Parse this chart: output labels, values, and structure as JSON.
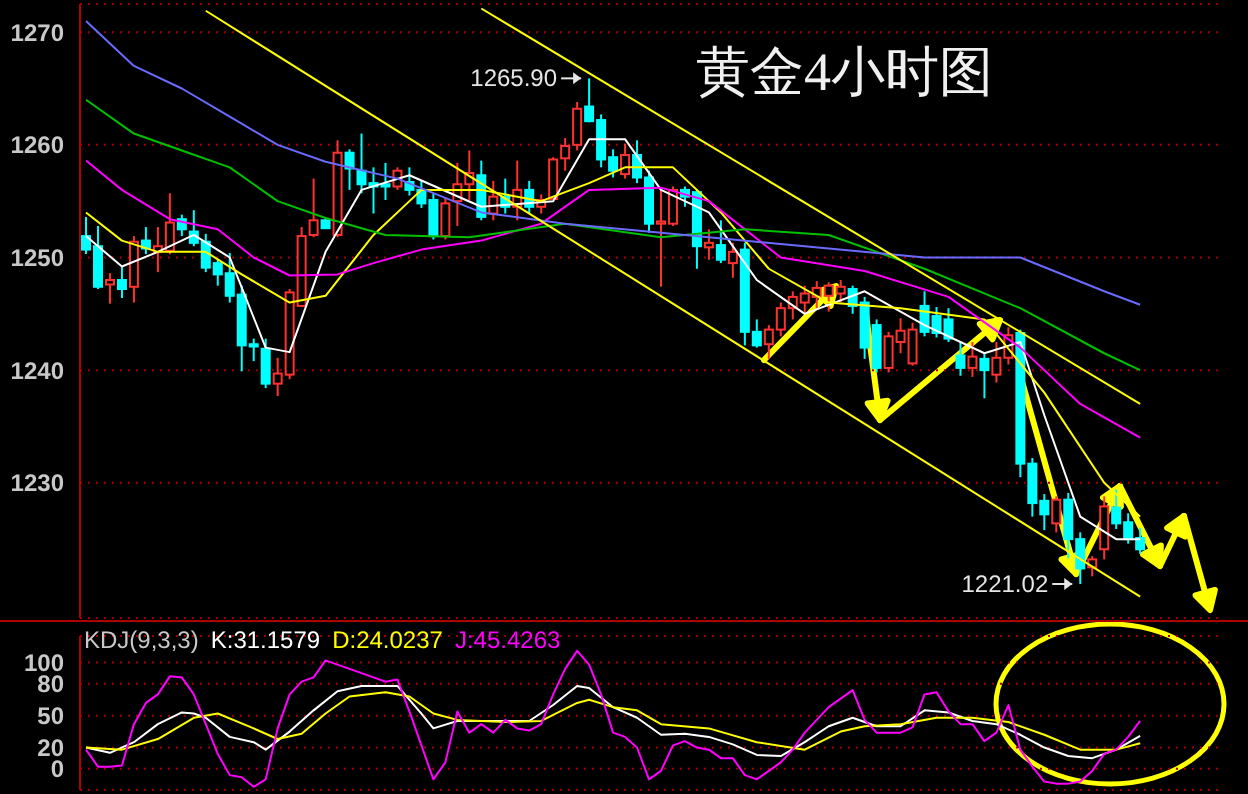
{
  "chart_data": [
    {
      "type": "candlestick",
      "title": "黄金4小时图",
      "categories": [
        null,
        null,
        null,
        null,
        null,
        null,
        null,
        null,
        null,
        null,
        null,
        null,
        null,
        null,
        null,
        null,
        null,
        null,
        null,
        null,
        null,
        null,
        null,
        null,
        null,
        null,
        null,
        null,
        null,
        null,
        null,
        null,
        null,
        null,
        null,
        null,
        null,
        null,
        null,
        null,
        null,
        null,
        null,
        null,
        null,
        null,
        null,
        null,
        null,
        null,
        null,
        null,
        null,
        null,
        null,
        null,
        null,
        null,
        null,
        null,
        null,
        null,
        null,
        null,
        null,
        null,
        null,
        null,
        null,
        null,
        null,
        null,
        null,
        null,
        null,
        null,
        null,
        null,
        null,
        null,
        null,
        null,
        null,
        null,
        null,
        null,
        null,
        null,
        null
      ],
      "ohlc": [
        [
          1251.9,
          1253.6,
          1250.3,
          1250.7
        ],
        [
          1251.0,
          1252.8,
          1247.2,
          1247.4
        ],
        [
          1247.6,
          1248.6,
          1245.9,
          1248.0
        ],
        [
          1248.0,
          1249.2,
          1246.4,
          1247.2
        ],
        [
          1247.4,
          1251.9,
          1246.0,
          1251.4
        ],
        [
          1251.5,
          1252.7,
          1250.3,
          1250.8
        ],
        [
          1250.5,
          1252.7,
          1248.7,
          1251.0
        ],
        [
          1250.6,
          1255.7,
          1250.3,
          1253.1
        ],
        [
          1253.4,
          1253.8,
          1251.9,
          1252.5
        ],
        [
          1252.3,
          1254.2,
          1251.0,
          1251.3
        ],
        [
          1251.4,
          1252.1,
          1248.7,
          1249.1
        ],
        [
          1249.5,
          1249.8,
          1247.5,
          1248.5
        ],
        [
          1248.6,
          1250.4,
          1246.0,
          1246.6
        ],
        [
          1246.7,
          1247.5,
          1239.9,
          1242.2
        ],
        [
          1242.3,
          1242.8,
          1240.8,
          1242.1
        ],
        [
          1241.9,
          1242.8,
          1238.4,
          1238.8
        ],
        [
          1238.8,
          1241.1,
          1237.7,
          1239.7
        ],
        [
          1239.6,
          1247.2,
          1239.2,
          1246.9
        ],
        [
          1245.7,
          1252.7,
          1245.6,
          1251.9
        ],
        [
          1252.0,
          1257.0,
          1251.8,
          1253.3
        ],
        [
          1253.3,
          1253.6,
          1252.6,
          1252.6
        ],
        [
          1252.0,
          1260.4,
          1251.8,
          1259.3
        ],
        [
          1259.3,
          1259.6,
          1256.0,
          1257.9
        ],
        [
          1257.7,
          1261.0,
          1255.7,
          1256.5
        ],
        [
          1256.6,
          1258.0,
          1253.9,
          1256.3
        ],
        [
          1256.5,
          1258.4,
          1255.1,
          1256.3
        ],
        [
          1256.3,
          1258.0,
          1256.0,
          1257.7
        ],
        [
          1256.7,
          1258.0,
          1255.5,
          1256.0
        ],
        [
          1256.0,
          1256.8,
          1254.4,
          1254.8
        ],
        [
          1255.1,
          1255.7,
          1251.6,
          1251.9
        ],
        [
          1251.9,
          1255.3,
          1251.6,
          1254.8
        ],
        [
          1255.0,
          1258.4,
          1252.8,
          1256.5
        ],
        [
          1256.5,
          1259.5,
          1255.1,
          1257.5
        ],
        [
          1257.3,
          1258.6,
          1253.3,
          1253.6
        ],
        [
          1253.9,
          1256.8,
          1253.3,
          1255.4
        ],
        [
          1255.4,
          1257.0,
          1253.9,
          1254.5
        ],
        [
          1254.5,
          1258.6,
          1253.3,
          1256.0
        ],
        [
          1256.0,
          1256.8,
          1253.9,
          1254.5
        ],
        [
          1254.5,
          1255.6,
          1253.9,
          1255.1
        ],
        [
          1255.2,
          1258.9,
          1255.1,
          1258.7
        ],
        [
          1258.8,
          1260.6,
          1257.7,
          1259.9
        ],
        [
          1260.0,
          1263.8,
          1259.5,
          1263.2
        ],
        [
          1263.4,
          1265.9,
          1262.0,
          1262.1
        ],
        [
          1262.2,
          1262.7,
          1258.0,
          1258.7
        ],
        [
          1258.9,
          1259.6,
          1257.1,
          1257.7
        ],
        [
          1257.4,
          1260.1,
          1257.0,
          1259.1
        ],
        [
          1259.1,
          1260.4,
          1256.6,
          1257.1
        ],
        [
          1257.1,
          1257.7,
          1252.2,
          1253.0
        ],
        [
          1253.0,
          1256.0,
          1247.4,
          1253.2
        ],
        [
          1253.0,
          1256.3,
          1252.8,
          1256.0
        ],
        [
          1256.0,
          1256.3,
          1254.5,
          1255.4
        ],
        [
          1255.8,
          1256.0,
          1249.0,
          1251.0
        ],
        [
          1250.9,
          1252.5,
          1249.8,
          1251.3
        ],
        [
          1251.1,
          1253.3,
          1249.5,
          1249.8
        ],
        [
          1249.5,
          1251.3,
          1248.2,
          1250.5
        ],
        [
          1250.7,
          1251.3,
          1242.2,
          1243.4
        ],
        [
          1243.4,
          1244.5,
          1242.0,
          1242.2
        ],
        [
          1242.3,
          1244.0,
          1241.0,
          1243.6
        ],
        [
          1243.6,
          1246.0,
          1243.0,
          1245.5
        ],
        [
          1245.5,
          1247.0,
          1244.5,
          1246.5
        ],
        [
          1246.0,
          1247.5,
          1245.0,
          1246.8
        ],
        [
          1246.5,
          1247.9,
          1245.5,
          1247.3
        ],
        [
          1246.6,
          1247.8,
          1245.2,
          1247.5
        ],
        [
          1246.8,
          1248.0,
          1246.0,
          1247.4
        ],
        [
          1247.2,
          1247.5,
          1245.0,
          1245.7
        ],
        [
          1246.0,
          1246.5,
          1241.0,
          1242.0
        ],
        [
          1244.0,
          1244.5,
          1239.8,
          1240.2
        ],
        [
          1240.2,
          1243.4,
          1239.8,
          1243.0
        ],
        [
          1242.5,
          1244.6,
          1241.5,
          1243.5
        ],
        [
          1240.6,
          1244.2,
          1240.4,
          1243.6
        ],
        [
          1245.7,
          1247.0,
          1243.0,
          1243.4
        ],
        [
          1244.8,
          1245.6,
          1242.9,
          1243.3
        ],
        [
          1244.5,
          1245.5,
          1242.5,
          1242.8
        ],
        [
          1241.3,
          1242.5,
          1239.5,
          1240.2
        ],
        [
          1240.2,
          1242.5,
          1239.4,
          1241.2
        ],
        [
          1241.0,
          1241.5,
          1237.5,
          1240.0
        ],
        [
          1239.6,
          1242.5,
          1238.9,
          1241.1
        ],
        [
          1241.1,
          1243.8,
          1240.5,
          1243.1
        ],
        [
          1243.3,
          1243.6,
          1230.5,
          1231.7
        ],
        [
          1231.7,
          1232.2,
          1227.0,
          1228.2
        ],
        [
          1228.4,
          1229.0,
          1225.8,
          1227.2
        ],
        [
          1226.4,
          1228.8,
          1225.6,
          1228.5
        ],
        [
          1228.5,
          1229.1,
          1223.3,
          1225.0
        ],
        [
          1225.0,
          1225.6,
          1221.02,
          1222.4
        ],
        [
          1222.5,
          1223.5,
          1221.7,
          1223.2
        ],
        [
          1224.1,
          1228.8,
          1223.2,
          1227.9
        ],
        [
          1227.8,
          1229.4,
          1225.9,
          1226.4
        ],
        [
          1226.5,
          1227.3,
          1224.6,
          1225.0
        ],
        [
          1225.1,
          1226.0,
          1223.7,
          1224.1
        ]
      ],
      "series": [
        {
          "type": "line",
          "color": "#ffffff",
          "values": [
            1251.9,
            null,
            null,
            1249.2,
            null,
            null,
            1250.5,
            null,
            null,
            1252,
            null,
            null,
            1250,
            null,
            null,
            1242,
            null,
            1241.6,
            null,
            null,
            1250.5,
            null,
            null,
            1256,
            null,
            null,
            null,
            1257.3,
            null,
            null,
            null,
            null,
            null,
            1254.5,
            null,
            null,
            null,
            null,
            null,
            1255,
            null,
            null,
            1260.5,
            null,
            null,
            1260.5,
            null,
            null,
            1256,
            null,
            null,
            null,
            1254,
            null,
            null,
            null,
            1248,
            null,
            null,
            null,
            1245,
            null,
            null,
            null,
            null,
            1247,
            null,
            null,
            null,
            null,
            1244,
            null,
            null,
            null,
            null,
            1241.5,
            null,
            null,
            1242.5,
            null,
            1236,
            null,
            null,
            1227,
            null,
            null,
            1225,
            null,
            1225
          ]
        },
        {
          "type": "line",
          "color": "#ffff00",
          "values": [
            1254,
            null,
            null,
            1251.5,
            null,
            null,
            1250.5,
            null,
            null,
            null,
            1250.5,
            null,
            null,
            1248.5,
            null,
            null,
            null,
            1246,
            null,
            null,
            1246.6,
            null,
            null,
            null,
            1252,
            null,
            null,
            null,
            1256,
            null,
            null,
            null,
            null,
            1256,
            null,
            null,
            null,
            null,
            1255,
            null,
            null,
            null,
            1256.6,
            null,
            null,
            1258,
            null,
            null,
            null,
            1258,
            null,
            null,
            null,
            1254,
            null,
            null,
            null,
            1249,
            null,
            null,
            null,
            null,
            1246,
            null,
            null,
            null,
            null,
            null,
            1245.5,
            null,
            null,
            null,
            null,
            null,
            null,
            1244.5,
            null,
            null,
            null,
            null,
            1238,
            null,
            null,
            null,
            null,
            1230,
            null,
            null,
            1227
          ]
        },
        {
          "type": "line",
          "color": "#ff00ff",
          "values": [
            1258.6,
            null,
            null,
            1256,
            null,
            null,
            null,
            1253.4,
            null,
            null,
            null,
            1252.5,
            null,
            null,
            1250,
            null,
            null,
            1248.4,
            null,
            null,
            null,
            1248.5,
            null,
            null,
            1249.5,
            null,
            null,
            null,
            1250.7,
            null,
            null,
            null,
            null,
            1251.5,
            null,
            null,
            null,
            null,
            1253,
            null,
            null,
            null,
            1256,
            null,
            null,
            null,
            null,
            null,
            1256.2,
            null,
            null,
            null,
            1255,
            null,
            null,
            null,
            null,
            null,
            1250,
            null,
            null,
            null,
            null,
            null,
            null,
            1248.8,
            null,
            null,
            null,
            null,
            null,
            null,
            1246.5,
            null,
            null,
            null,
            null,
            null,
            1242,
            null,
            null,
            null,
            null,
            1237,
            null,
            null,
            null,
            null,
            1234
          ]
        },
        {
          "type": "line",
          "color": "#00c000",
          "values": [
            1264,
            null,
            null,
            null,
            1261,
            null,
            null,
            null,
            1259.5,
            null,
            null,
            null,
            1258,
            null,
            null,
            null,
            1255,
            null,
            null,
            null,
            1253.5,
            null,
            null,
            null,
            null,
            1252,
            null,
            null,
            null,
            null,
            null,
            null,
            1251.8,
            null,
            null,
            null,
            null,
            null,
            null,
            null,
            1253,
            null,
            null,
            null,
            null,
            null,
            null,
            null,
            1251.8,
            null,
            null,
            null,
            null,
            null,
            null,
            1252.5,
            null,
            null,
            null,
            null,
            null,
            null,
            1252,
            null,
            null,
            null,
            null,
            null,
            null,
            null,
            1249,
            null,
            null,
            null,
            null,
            null,
            null,
            null,
            1245.5,
            null,
            null,
            null,
            null,
            null,
            null,
            1241.5,
            null,
            null,
            1240
          ]
        },
        {
          "type": "line",
          "color": "#6a6aff",
          "values": [
            1271,
            null,
            null,
            null,
            1267,
            null,
            null,
            null,
            1265,
            null,
            null,
            null,
            1262.5,
            null,
            null,
            null,
            1260,
            null,
            null,
            null,
            1258.5,
            null,
            null,
            null,
            null,
            null,
            1257,
            null,
            null,
            null,
            null,
            null,
            null,
            1254,
            null,
            null,
            null,
            null,
            null,
            null,
            1253,
            null,
            null,
            null,
            null,
            null,
            null,
            null,
            null,
            null,
            1252,
            null,
            null,
            null,
            null,
            null,
            null,
            null,
            null,
            null,
            1251,
            null,
            null,
            null,
            null,
            null,
            null,
            null,
            null,
            null,
            1250,
            null,
            null,
            null,
            null,
            null,
            null,
            null,
            1250,
            null,
            null,
            null,
            null,
            null,
            null,
            1247,
            null,
            null,
            1245.8
          ]
        },
        {
          "type": "line",
          "color": "#ffff00",
          "values": [
            null,
            null,
            null,
            null,
            null,
            null,
            null,
            null,
            null,
            null,
            1271.9,
            null,
            null,
            null,
            null,
            null,
            null,
            null,
            null,
            null,
            null,
            null,
            null,
            null,
            null,
            null,
            null,
            null,
            null,
            null,
            null,
            null,
            null,
            null,
            null,
            null,
            null,
            null,
            null,
            null,
            null,
            null,
            null,
            null,
            null,
            null,
            null,
            null,
            null,
            null,
            null,
            null,
            null,
            null,
            null,
            null,
            null,
            null,
            null,
            null,
            null,
            null,
            null,
            null,
            null,
            null,
            null,
            null,
            null,
            null,
            null,
            null,
            null,
            null,
            null,
            null,
            null,
            null,
            null,
            null,
            null,
            null,
            null,
            null,
            null,
            null,
            null,
            null,
            1219.9
          ]
        },
        {
          "type": "line",
          "color": "#ffff00",
          "values": [
            null,
            null,
            null,
            null,
            null,
            null,
            null,
            null,
            null,
            null,
            null,
            null,
            null,
            null,
            null,
            null,
            null,
            null,
            null,
            null,
            null,
            null,
            null,
            null,
            null,
            null,
            null,
            null,
            null,
            null,
            null,
            null,
            null,
            1272.1,
            null,
            null,
            null,
            null,
            null,
            null,
            null,
            null,
            null,
            null,
            null,
            null,
            null,
            null,
            null,
            null,
            null,
            null,
            null,
            null,
            null,
            null,
            null,
            null,
            null,
            null,
            null,
            null,
            null,
            null,
            null,
            null,
            null,
            null,
            null,
            null,
            null,
            null,
            null,
            null,
            null,
            null,
            null,
            null,
            null,
            null,
            null,
            null,
            null,
            null,
            null,
            null,
            null,
            null,
            1237.0
          ]
        }
      ],
      "ylim": [
        1218,
        1272.5
      ],
      "yticks": [
        1230,
        1240,
        1250,
        1260,
        1270
      ],
      "grid": "y",
      "tick_labels": "y",
      "annotations": [
        "1265.90",
        "1221.02"
      ]
    },
    {
      "type": "line",
      "title": "KDJ(9,3,3)",
      "categories": [
        null,
        null,
        null,
        null,
        null,
        null,
        null,
        null,
        null,
        null,
        null,
        null,
        null,
        null,
        null,
        null,
        null,
        null,
        null,
        null,
        null,
        null,
        null,
        null,
        null,
        null,
        null,
        null,
        null,
        null,
        null,
        null,
        null,
        null,
        null,
        null,
        null,
        null,
        null,
        null,
        null,
        null,
        null,
        null,
        null,
        null,
        null,
        null,
        null,
        null,
        null,
        null,
        null,
        null,
        null,
        null,
        null,
        null,
        null,
        null,
        null,
        null,
        null,
        null,
        null,
        null,
        null,
        null,
        null,
        null,
        null,
        null,
        null,
        null,
        null,
        null,
        null,
        null,
        null,
        null,
        null,
        null,
        null,
        null,
        null,
        null,
        null,
        null,
        null
      ],
      "series": [
        {
          "name": "K:31.1579",
          "color": "#ffffff",
          "values": [
            20,
            null,
            15,
            null,
            25,
            null,
            42,
            null,
            53,
            52,
            48,
            null,
            30,
            null,
            25,
            18,
            null,
            35,
            null,
            55,
            null,
            73,
            null,
            78,
            null,
            null,
            78,
            null,
            52,
            38,
            null,
            45,
            null,
            45,
            null,
            45,
            null,
            45,
            null,
            60,
            null,
            78,
            76,
            null,
            58,
            null,
            48,
            null,
            32,
            null,
            33,
            null,
            30,
            null,
            23,
            null,
            13,
            null,
            12,
            null,
            25,
            null,
            40,
            null,
            48,
            null,
            40,
            null,
            40,
            null,
            55,
            null,
            53,
            null,
            45,
            null,
            42,
            null,
            32,
            null,
            20,
            null,
            12,
            null,
            10,
            null,
            18,
            null,
            31
          ]
        },
        {
          "name": "D:24.0237",
          "color": "#ffff00",
          "values": [
            20,
            null,
            null,
            18,
            null,
            null,
            28,
            null,
            null,
            48,
            null,
            52,
            null,
            null,
            38,
            null,
            28,
            null,
            33,
            null,
            52,
            null,
            68,
            null,
            null,
            72,
            null,
            68,
            null,
            52,
            null,
            46,
            null,
            null,
            null,
            44,
            null,
            null,
            45,
            null,
            null,
            62,
            65,
            null,
            58,
            null,
            55,
            null,
            42,
            null,
            null,
            null,
            38,
            null,
            null,
            null,
            25,
            null,
            null,
            null,
            18,
            null,
            null,
            35,
            null,
            40,
            null,
            null,
            42,
            null,
            null,
            48,
            null,
            null,
            48,
            null,
            null,
            44,
            null,
            null,
            32,
            null,
            null,
            18,
            null,
            null,
            18,
            null,
            24
          ]
        },
        {
          "name": "J:45.4263",
          "color": "#ff00ff",
          "values": [
            18,
            2,
            2,
            3,
            42,
            62,
            70,
            87,
            86,
            70,
            42,
            14,
            -6,
            -8,
            -17,
            -10,
            38,
            70,
            82,
            86,
            102,
            98,
            94,
            90,
            86,
            82,
            84,
            54,
            22,
            -10,
            6,
            54,
            34,
            42,
            34,
            46,
            38,
            36,
            42,
            70,
            94,
            111,
            98,
            70,
            34,
            30,
            20,
            -10,
            -2,
            22,
            26,
            20,
            18,
            10,
            10,
            -6,
            -10,
            -2,
            6,
            18,
            34,
            46,
            58,
            66,
            74,
            46,
            34,
            34,
            34,
            39,
            70,
            72,
            54,
            42,
            42,
            26,
            34,
            60,
            18,
            2,
            -12,
            -14,
            -14,
            -12,
            -2,
            14,
            18,
            30,
            45
          ]
        }
      ],
      "ylim": [
        -20,
        125
      ],
      "yticks": [
        0,
        20,
        50,
        80,
        100
      ],
      "grid": "y",
      "tick_labels": "y",
      "legend": "top left"
    }
  ]
}
